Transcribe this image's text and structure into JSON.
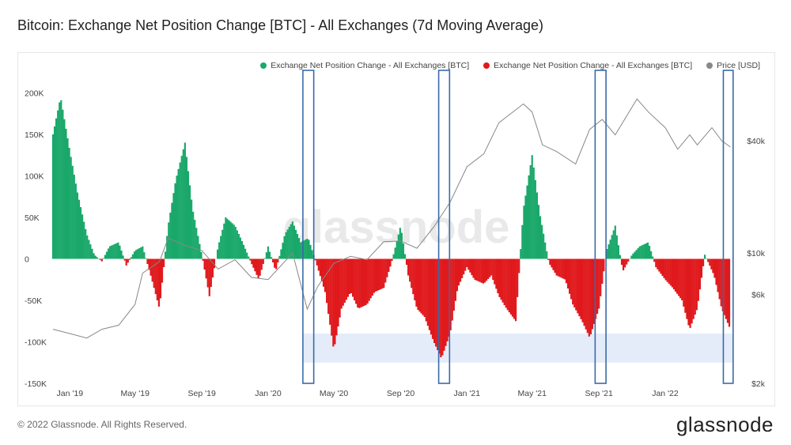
{
  "header": {
    "title": "Bitcoin: Exchange Net Position Change [BTC] - All Exchanges (7d Moving Average)"
  },
  "footer": {
    "copyright": "© 2022 Glassnode. All Rights Reserved.",
    "brand": "glassnode"
  },
  "watermark": "glassnode",
  "colors": {
    "positive": "#1aa86a",
    "negative": "#e0191c",
    "price": "#888888",
    "highlight_box": "#3b6aa8",
    "band": "#dde7f7"
  },
  "chart_data": {
    "type": "bar",
    "title": "Bitcoin: Exchange Net Position Change [BTC] - All Exchanges (7d Moving Average)",
    "legend": [
      {
        "label": "Exchange Net Position Change - All Exchanges [BTC]",
        "color": "#1aa86a"
      },
      {
        "label": "Exchange Net Position Change - All Exchanges [BTC]",
        "color": "#e0191c"
      },
      {
        "label": "Price [USD]",
        "color": "#888888"
      }
    ],
    "legend_position": "top-right",
    "x_ticks": [
      "Jan '19",
      "May '19",
      "Sep '19",
      "Jan '20",
      "May '20",
      "Sep '20",
      "Jan '21",
      "May '21",
      "Sep '21",
      "Jan '22"
    ],
    "y_left_ticks": [
      "200K",
      "150K",
      "100K",
      "50K",
      "0",
      "-50K",
      "-100K",
      "-150K"
    ],
    "y_left_values": [
      200000,
      150000,
      100000,
      50000,
      0,
      -50000,
      -100000,
      -150000
    ],
    "y_left_range": [
      -150000,
      210000
    ],
    "y_right_ticks": [
      "$40k",
      "$10k",
      "$6k",
      "$2k"
    ],
    "y_right_scale": "log",
    "x_range": [
      "2018-12-01",
      "2022-05-15"
    ],
    "net_position_change": {
      "dates": [
        "2018-12-01",
        "2018-12-15",
        "2019-01-01",
        "2019-01-15",
        "2019-02-01",
        "2019-02-15",
        "2019-03-01",
        "2019-03-15",
        "2019-04-01",
        "2019-04-15",
        "2019-05-01",
        "2019-05-15",
        "2019-06-01",
        "2019-06-15",
        "2019-07-01",
        "2019-07-15",
        "2019-08-01",
        "2019-08-15",
        "2019-09-01",
        "2019-09-15",
        "2019-10-01",
        "2019-10-15",
        "2019-11-01",
        "2019-11-15",
        "2019-12-01",
        "2019-12-15",
        "2020-01-01",
        "2020-01-15",
        "2020-02-01",
        "2020-02-15",
        "2020-03-01",
        "2020-03-15",
        "2020-04-01",
        "2020-04-15",
        "2020-05-01",
        "2020-05-15",
        "2020-06-01",
        "2020-06-15",
        "2020-07-01",
        "2020-07-15",
        "2020-08-01",
        "2020-08-15",
        "2020-09-01",
        "2020-09-15",
        "2020-10-01",
        "2020-10-15",
        "2020-11-01",
        "2020-11-15",
        "2020-12-01",
        "2020-12-15",
        "2021-01-01",
        "2021-01-15",
        "2021-02-01",
        "2021-02-15",
        "2021-03-01",
        "2021-03-15",
        "2021-04-01",
        "2021-04-15",
        "2021-05-01",
        "2021-05-15",
        "2021-06-01",
        "2021-06-15",
        "2021-07-01",
        "2021-07-15",
        "2021-08-01",
        "2021-08-15",
        "2021-09-01",
        "2021-09-15",
        "2021-10-01",
        "2021-10-15",
        "2021-11-01",
        "2021-11-15",
        "2021-12-01",
        "2021-12-15",
        "2022-01-01",
        "2022-01-15",
        "2022-02-01",
        "2022-02-15",
        "2022-03-01",
        "2022-03-15",
        "2022-04-01",
        "2022-04-15",
        "2022-05-01"
      ],
      "values": [
        150000,
        195000,
        130000,
        80000,
        30000,
        5000,
        -3000,
        15000,
        20000,
        -8000,
        10000,
        15000,
        -25000,
        -60000,
        40000,
        95000,
        140000,
        60000,
        5000,
        -45000,
        15000,
        50000,
        40000,
        20000,
        -5000,
        -25000,
        15000,
        -15000,
        30000,
        45000,
        20000,
        25000,
        -10000,
        -40000,
        -110000,
        -60000,
        -40000,
        -60000,
        -55000,
        -40000,
        -35000,
        -5000,
        40000,
        -20000,
        -60000,
        -70000,
        -100000,
        -120000,
        -90000,
        -35000,
        -10000,
        -25000,
        -30000,
        -20000,
        -45000,
        -60000,
        -75000,
        60000,
        125000,
        55000,
        -5000,
        -20000,
        -25000,
        -55000,
        -75000,
        -95000,
        -60000,
        10000,
        40000,
        -15000,
        5000,
        15000,
        20000,
        -10000,
        -25000,
        -35000,
        -50000,
        -85000,
        -60000,
        5000,
        -20000,
        -60000,
        -85000
      ]
    },
    "price_usd": {
      "dates": [
        "2018-12-01",
        "2019-01-01",
        "2019-02-01",
        "2019-03-01",
        "2019-04-01",
        "2019-05-01",
        "2019-05-15",
        "2019-06-15",
        "2019-07-01",
        "2019-08-01",
        "2019-09-01",
        "2019-10-01",
        "2019-11-01",
        "2019-12-01",
        "2020-01-01",
        "2020-02-15",
        "2020-03-13",
        "2020-04-01",
        "2020-05-01",
        "2020-06-01",
        "2020-07-01",
        "2020-08-01",
        "2020-09-01",
        "2020-10-01",
        "2020-11-01",
        "2020-12-01",
        "2021-01-01",
        "2021-02-01",
        "2021-03-01",
        "2021-04-15",
        "2021-05-01",
        "2021-05-20",
        "2021-06-15",
        "2021-07-20",
        "2021-08-15",
        "2021-09-07",
        "2021-10-01",
        "2021-11-10",
        "2021-12-01",
        "2022-01-01",
        "2022-01-24",
        "2022-02-15",
        "2022-03-01",
        "2022-03-28",
        "2022-04-15",
        "2022-05-01"
      ],
      "values": [
        3900,
        3700,
        3500,
        3900,
        4100,
        5300,
        7800,
        9000,
        12000,
        11000,
        10300,
        8200,
        9200,
        7400,
        7200,
        10000,
        5000,
        6600,
        8800,
        9600,
        9200,
        11500,
        11600,
        10600,
        13800,
        18700,
        29000,
        34000,
        50000,
        63000,
        57000,
        38000,
        35000,
        30000,
        46000,
        52000,
        43000,
        67000,
        57000,
        47000,
        36000,
        43000,
        38000,
        47000,
        40000,
        37000
      ]
    },
    "highlight_windows": [
      {
        "from": "2020-03-05",
        "to": "2020-03-25"
      },
      {
        "from": "2020-11-10",
        "to": "2020-11-30"
      },
      {
        "from": "2021-08-25",
        "to": "2021-09-14"
      },
      {
        "from": "2022-04-18",
        "to": "2022-05-06"
      }
    ],
    "highlight_band": {
      "from_date": "2020-03-05",
      "to_date": "2022-05-06",
      "y_from": -125000,
      "y_to": -90000
    }
  }
}
